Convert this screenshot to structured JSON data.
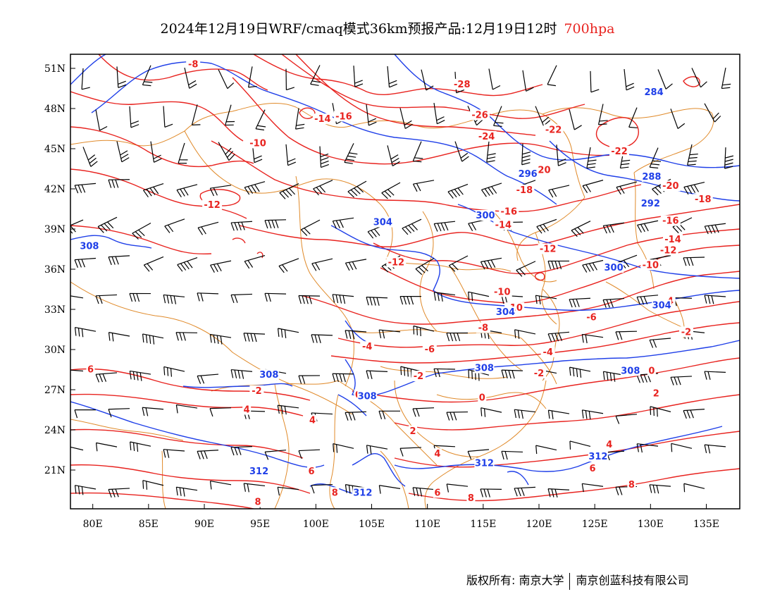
{
  "title": {
    "main": "2024年12月19日WRF/cmaq模式36km预报产品:12月19日12时",
    "level": "700hpa"
  },
  "axes": {
    "lat_labels": [
      "51N",
      "48N",
      "45N",
      "42N",
      "39N",
      "36N",
      "33N",
      "30N",
      "27N",
      "24N",
      "21N"
    ],
    "lon_labels": [
      "80E",
      "85E",
      "90E",
      "95E",
      "100E",
      "105E",
      "110E",
      "115E",
      "120E",
      "125E",
      "130E",
      "135E"
    ]
  },
  "colors": {
    "temperature": "#e8231f",
    "geopotential": "#1f3fe8",
    "border": "#e08a2a",
    "wind": "#000000"
  },
  "temperature_labels": [
    {
      "text": "-8",
      "lon": 89,
      "lat": 51.3
    },
    {
      "text": "-28",
      "lon": 113.1,
      "lat": 49.8
    },
    {
      "text": "-26",
      "lon": 114.7,
      "lat": 47.5
    },
    {
      "text": "-24",
      "lon": 115.3,
      "lat": 45.9
    },
    {
      "text": "-22",
      "lon": 121.3,
      "lat": 46.4
    },
    {
      "text": "-22",
      "lon": 127.2,
      "lat": 44.8
    },
    {
      "text": "-14",
      "lon": 100.6,
      "lat": 47.2
    },
    {
      "text": "-16",
      "lon": 102.5,
      "lat": 47.4
    },
    {
      "text": "-10",
      "lon": 94.8,
      "lat": 45.4
    },
    {
      "text": "-20",
      "lon": 120.3,
      "lat": 43.4
    },
    {
      "text": "-18",
      "lon": 118.7,
      "lat": 41.9
    },
    {
      "text": "-16",
      "lon": 117.3,
      "lat": 40.3
    },
    {
      "text": "-14",
      "lon": 116.8,
      "lat": 39.3
    },
    {
      "text": "-12",
      "lon": 90.7,
      "lat": 40.8
    },
    {
      "text": "-12",
      "lon": 120.8,
      "lat": 37.5
    },
    {
      "text": "-12",
      "lon": 107.2,
      "lat": 36.5
    },
    {
      "text": "-10",
      "lon": 116.7,
      "lat": 34.3
    },
    {
      "text": "-10",
      "lon": 117.8,
      "lat": 33.1
    },
    {
      "text": "-20",
      "lon": 131.8,
      "lat": 42.2
    },
    {
      "text": "-18",
      "lon": 134.7,
      "lat": 41.2
    },
    {
      "text": "-16",
      "lon": 131.8,
      "lat": 39.6
    },
    {
      "text": "-14",
      "lon": 132.0,
      "lat": 38.2
    },
    {
      "text": "-12",
      "lon": 131.6,
      "lat": 37.4
    },
    {
      "text": "-10",
      "lon": 130.0,
      "lat": 36.3
    },
    {
      "text": "-8",
      "lon": 115.0,
      "lat": 31.6
    },
    {
      "text": "-6",
      "lon": 110.2,
      "lat": 30.0
    },
    {
      "text": "-6",
      "lon": 124.7,
      "lat": 32.4
    },
    {
      "text": "-4",
      "lon": 104.6,
      "lat": 30.2
    },
    {
      "text": "-4",
      "lon": 120.8,
      "lat": 29.8
    },
    {
      "text": "-4",
      "lon": 131.6,
      "lat": 33.6
    },
    {
      "text": "-2",
      "lon": 133.2,
      "lat": 31.3
    },
    {
      "text": "-2",
      "lon": 109.2,
      "lat": 28.0
    },
    {
      "text": "-2",
      "lon": 120.0,
      "lat": 28.2
    },
    {
      "text": "-2",
      "lon": 94.7,
      "lat": 26.9
    },
    {
      "text": "0",
      "lon": 130.1,
      "lat": 28.4
    },
    {
      "text": "0",
      "lon": 103.8,
      "lat": 26.6
    },
    {
      "text": "0",
      "lon": 114.9,
      "lat": 26.4
    },
    {
      "text": "2",
      "lon": 108.7,
      "lat": 23.9
    },
    {
      "text": "2",
      "lon": 130.5,
      "lat": 26.7
    },
    {
      "text": "4",
      "lon": 93.8,
      "lat": 25.5
    },
    {
      "text": "4",
      "lon": 99.7,
      "lat": 24.7
    },
    {
      "text": "4",
      "lon": 110.9,
      "lat": 22.2
    },
    {
      "text": "4",
      "lon": 126.3,
      "lat": 22.9
    },
    {
      "text": "6",
      "lon": 79.8,
      "lat": 28.5
    },
    {
      "text": "6",
      "lon": 99.6,
      "lat": 20.9
    },
    {
      "text": "6",
      "lon": 110.9,
      "lat": 19.3
    },
    {
      "text": "6",
      "lon": 124.8,
      "lat": 21.1
    },
    {
      "text": "8",
      "lon": 101.7,
      "lat": 19.3
    },
    {
      "text": "8",
      "lon": 94.8,
      "lat": 18.6
    },
    {
      "text": "8",
      "lon": 113.9,
      "lat": 18.9
    },
    {
      "text": "8",
      "lon": 128.3,
      "lat": 19.9
    }
  ],
  "height_labels": [
    {
      "text": "284",
      "lon": 130.3,
      "lat": 49.2
    },
    {
      "text": "288",
      "lon": 130.1,
      "lat": 42.9
    },
    {
      "text": "292",
      "lon": 130.0,
      "lat": 40.9
    },
    {
      "text": "296",
      "lon": 119.0,
      "lat": 43.1
    },
    {
      "text": "300",
      "lon": 115.2,
      "lat": 40.0
    },
    {
      "text": "300",
      "lon": 126.7,
      "lat": 36.1
    },
    {
      "text": "304",
      "lon": 106.0,
      "lat": 39.5
    },
    {
      "text": "304",
      "lon": 117.0,
      "lat": 32.8
    },
    {
      "text": "304",
      "lon": 131.0,
      "lat": 33.3
    },
    {
      "text": "308",
      "lon": 79.7,
      "lat": 37.7
    },
    {
      "text": "308",
      "lon": 95.8,
      "lat": 28.1
    },
    {
      "text": "308",
      "lon": 104.6,
      "lat": 26.5
    },
    {
      "text": "308",
      "lon": 115.1,
      "lat": 28.6
    },
    {
      "text": "308",
      "lon": 128.2,
      "lat": 28.4
    },
    {
      "text": "312",
      "lon": 94.9,
      "lat": 20.9
    },
    {
      "text": "312",
      "lon": 104.2,
      "lat": 19.3
    },
    {
      "text": "312",
      "lon": 115.1,
      "lat": 21.5
    },
    {
      "text": "312",
      "lon": 125.3,
      "lat": 22.0
    }
  ],
  "footer": {
    "copyright": "版权所有: 南京大学",
    "company": "南京创蓝科技有限公司"
  }
}
